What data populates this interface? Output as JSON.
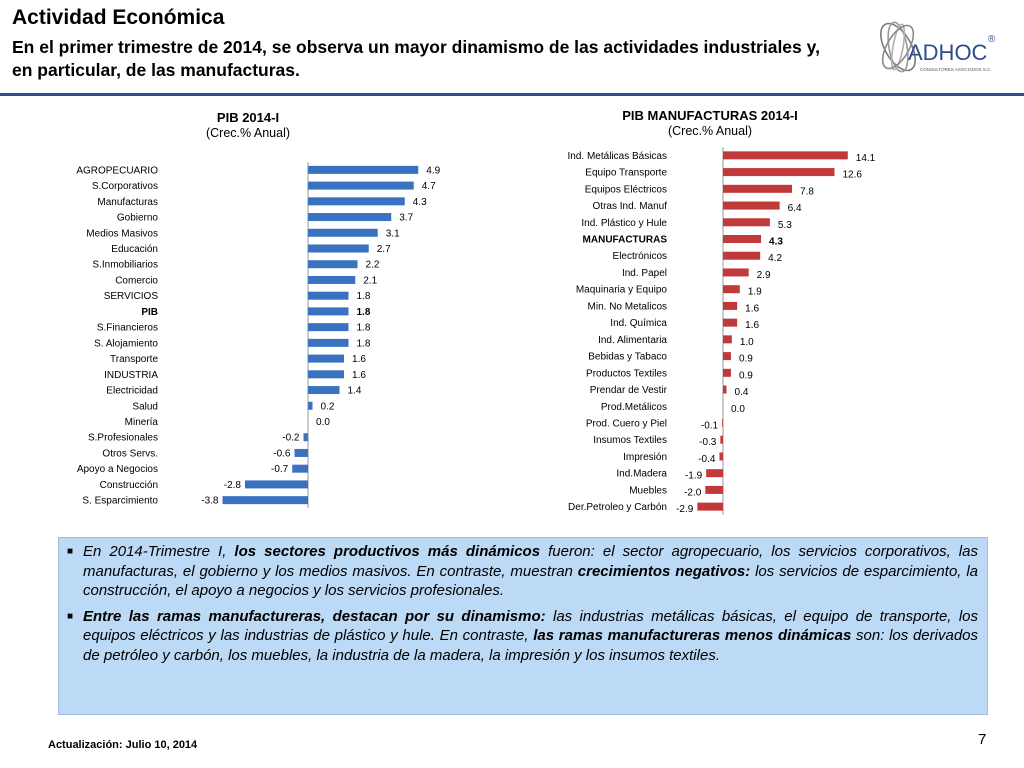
{
  "header": {
    "title": "Actividad Económica",
    "subtitle": "En el primer trimestre de 2014,  se observa un mayor dinamismo de las actividades industriales y, en particular, de las manufacturas."
  },
  "logo": {
    "name": "ADHOC",
    "registered": "®",
    "tagline": "CONSULTORES ASOCIADOS S.C.",
    "icon": "globe-swirl-icon"
  },
  "colors": {
    "rule": "#2e4d8c",
    "bar_left": "#3a72c0",
    "bar_right": "#c0393b",
    "textbox_bg": "#bcd9f5"
  },
  "chart_data": [
    {
      "type": "bar",
      "orientation": "horizontal",
      "title": "PIB  2014-I",
      "subtitle": "(Crec.% Anual)",
      "categories": [
        "AGROPECUARIO",
        "S.Corporativos",
        "Manufacturas",
        "Gobierno",
        "Medios Masivos",
        "Educación",
        "S.Inmobiliarios",
        "Comercio",
        "SERVICIOS",
        "PIB",
        "S.Financieros",
        "S. Alojamiento",
        "Transporte",
        "INDUSTRIA",
        "Electricidad",
        "Salud",
        "Minería",
        "S.Profesionales",
        "Otros Servs.",
        "Apoyo a Negocios",
        "Construcción",
        "S. Esparcimiento"
      ],
      "values": [
        4.9,
        4.7,
        4.3,
        3.7,
        3.1,
        2.7,
        2.2,
        2.1,
        1.8,
        1.8,
        1.8,
        1.8,
        1.6,
        1.6,
        1.4,
        0.2,
        0.0,
        -0.2,
        -0.6,
        -0.7,
        -2.8,
        -3.8
      ],
      "value_labels": [
        "4.9",
        "4.7",
        "4.3",
        "3.7",
        "3.1",
        "2.7",
        "2.2",
        "2.1",
        "1.8",
        "1.8",
        "1.8",
        "1.8",
        "1.6",
        "1.6",
        "1.4",
        "0.2",
        "0.0",
        "-0.2",
        "-0.6",
        "-0.7",
        "-2.8",
        "-3.8"
      ],
      "bold_labels": [
        "PIB"
      ],
      "color": "#3a72c0"
    },
    {
      "type": "bar",
      "orientation": "horizontal",
      "title": "PIB MANUFACTURAS  2014-I",
      "subtitle": "(Crec.% Anual)",
      "categories": [
        "Ind. Metálicas Básicas",
        "Equipo Transporte",
        "Equipos Eléctricos",
        "Otras Ind. Manuf",
        "Ind. Plástico y Hule",
        "MANUFACTURAS",
        "Electrónicos",
        "Ind. Papel",
        "Maquinaria y Equipo",
        "Min. No Metalicos",
        "Ind. Química",
        "Ind. Alimentaria",
        "Bebidas y Tabaco",
        "Productos Textiles",
        "Prendar de Vestir",
        "Prod.Metálicos",
        "Prod. Cuero y Piel",
        "Insumos Textiles",
        "Impresión",
        "Ind.Madera",
        "Muebles",
        "Der.Petroleo y Carbón"
      ],
      "values": [
        14.1,
        12.6,
        7.8,
        6.4,
        5.3,
        4.3,
        4.2,
        2.9,
        1.9,
        1.6,
        1.6,
        1.0,
        0.9,
        0.9,
        0.4,
        0.0,
        -0.1,
        -0.3,
        -0.4,
        -1.9,
        -2.0,
        -2.9
      ],
      "value_labels": [
        "14.1",
        "12.6",
        "7.8",
        "6.4",
        "5.3",
        "4.3",
        "4.2",
        "2.9",
        "1.9",
        "1.6",
        "1.6",
        "1.0",
        "0.9",
        "0.9",
        "0.4",
        "0.0",
        "-0.1",
        "-0.3",
        "-0.4",
        "-1.9",
        "-2.0",
        "-2.9"
      ],
      "bold_labels": [
        "MANUFACTURAS"
      ],
      "color": "#c0393b"
    }
  ],
  "textbox": {
    "bullet_char": "■",
    "bullets": [
      [
        {
          "t": "En 2014-Trimestre I, ",
          "b": false
        },
        {
          "t": "los sectores productivos más dinámicos",
          "b": true
        },
        {
          "t": " fueron: el sector agropecuario, los servicios corporativos, las manufacturas, el gobierno y los medios masivos. En contraste, muestran ",
          "b": false
        },
        {
          "t": "crecimientos negativos:",
          "b": true
        },
        {
          "t": "  los servicios de esparcimiento,  la construcción, el apoyo a negocios y los servicios profesionales.",
          "b": false
        }
      ],
      [
        {
          "t": "Entre las ramas manufactureras, destacan por su dinamismo:",
          "b": true
        },
        {
          "t": " las industrias metálicas básicas, el equipo de transporte, los equipos eléctricos y las industrias de plástico y hule.  En contraste, ",
          "b": false
        },
        {
          "t": "las ramas manufactureras menos dinámicas",
          "b": true
        },
        {
          "t": " son: los derivados de petróleo y carbón, los muebles, la industria de la madera, la impresión y los insumos textiles.",
          "b": false
        }
      ]
    ]
  },
  "footer": {
    "date": "Actualización:  Julio 10, 2014",
    "page": "7"
  }
}
